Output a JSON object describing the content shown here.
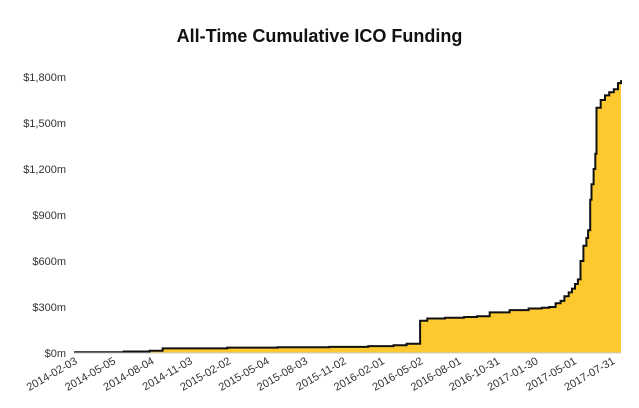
{
  "chart_data": {
    "type": "area",
    "title": "All-Time Cumulative ICO Funding",
    "xlabel": "",
    "ylabel": "",
    "x_range": [
      "2014-02-03",
      "2017-08-22"
    ],
    "ylim": [
      0,
      1800
    ],
    "y_ticks": [
      0,
      300,
      600,
      900,
      1200,
      1500,
      1800
    ],
    "y_tick_labels": [
      "$0m",
      "$300m",
      "$600m",
      "$900m",
      "$1,200m",
      "$1,500m",
      "$1,800m"
    ],
    "x_ticks": [
      "2014-02-03",
      "2014-05-05",
      "2014-08-04",
      "2014-11-03",
      "2015-02-02",
      "2015-05-04",
      "2015-08-03",
      "2015-11-02",
      "2016-02-01",
      "2016-05-02",
      "2016-08-01",
      "2016-10-31",
      "2017-01-30",
      "2017-05-01",
      "2017-07-31"
    ],
    "grid": false,
    "colors": {
      "fill": "#fdc92f",
      "line": "#111111"
    },
    "series": [
      {
        "x": [
          "2014-02-03",
          "2014-06-01",
          "2014-08-01",
          "2014-09-01",
          "2015-02-01",
          "2015-06-01",
          "2015-10-01",
          "2016-01-01",
          "2016-03-01",
          "2016-04-01",
          "2016-05-03",
          "2016-05-20",
          "2016-07-01",
          "2016-08-15",
          "2016-09-15",
          "2016-10-15",
          "2016-12-01",
          "2017-01-15",
          "2017-02-15",
          "2017-03-05",
          "2017-03-20",
          "2017-04-01",
          "2017-04-10",
          "2017-04-20",
          "2017-04-28",
          "2017-05-05",
          "2017-05-12",
          "2017-05-18",
          "2017-05-25",
          "2017-06-01",
          "2017-06-05",
          "2017-06-10",
          "2017-06-13",
          "2017-06-18",
          "2017-06-22",
          "2017-06-25",
          "2017-07-05",
          "2017-07-15",
          "2017-07-25",
          "2017-08-05",
          "2017-08-15",
          "2017-08-22"
        ],
        "y": [
          5,
          10,
          15,
          30,
          35,
          38,
          40,
          45,
          50,
          60,
          210,
          225,
          230,
          235,
          240,
          265,
          280,
          290,
          295,
          300,
          325,
          340,
          370,
          395,
          420,
          450,
          480,
          600,
          700,
          750,
          800,
          1000,
          1100,
          1200,
          1300,
          1600,
          1650,
          1680,
          1700,
          1720,
          1760,
          1780
        ]
      }
    ]
  }
}
